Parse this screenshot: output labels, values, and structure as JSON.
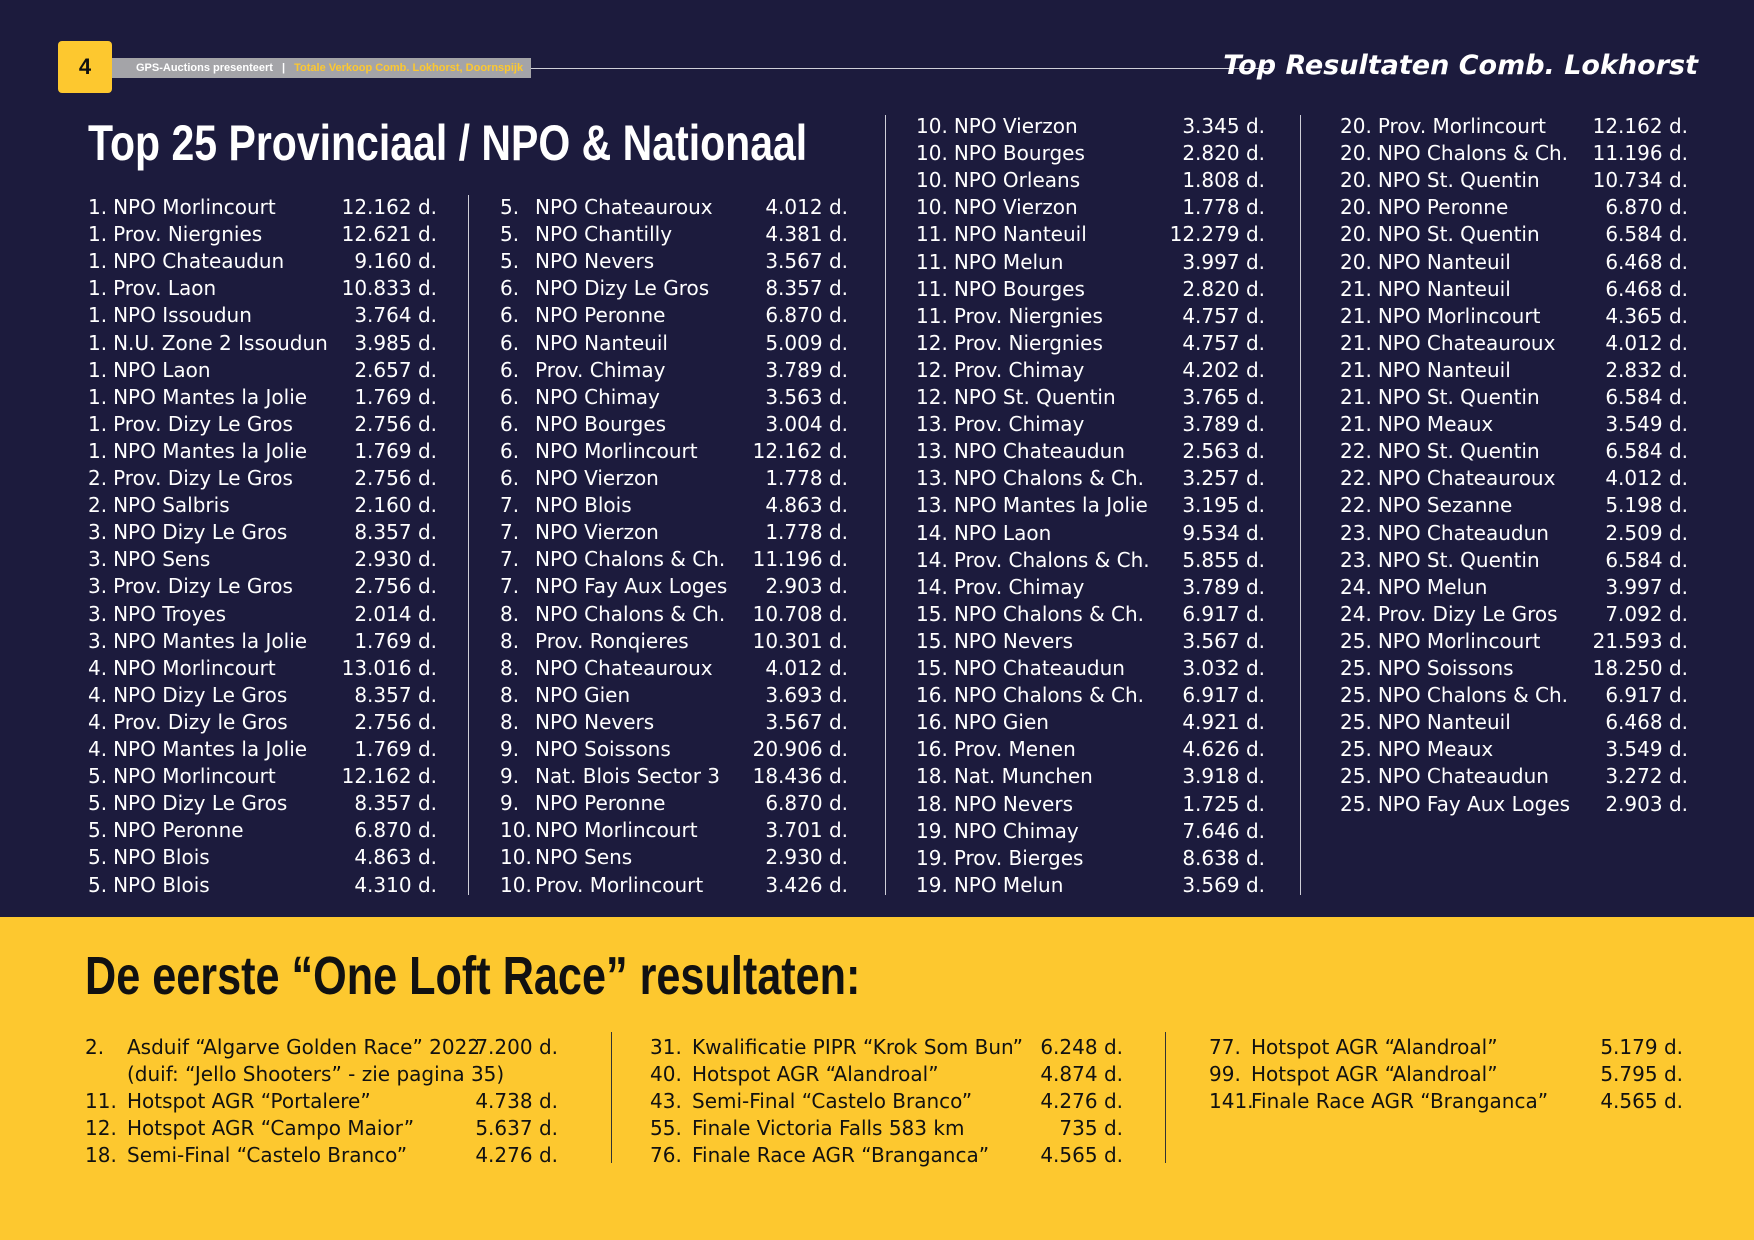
{
  "header": {
    "page_number": "4",
    "presenter": "GPS-Auctions presenteert",
    "separator": "|",
    "subtitle": "Totale Verkoop Comb. Lokhorst, Doornspijk",
    "section": "Top Resultaten Comb. Lokhorst"
  },
  "top": {
    "title": "Top 25 Provinciaal / NPO & Nationaal",
    "columns": [
      [
        [
          "1.",
          "NPO Morlincourt",
          "12.162 d."
        ],
        [
          "1.",
          "Prov. Niergnies",
          "12.621 d."
        ],
        [
          "1.",
          "NPO Chateaudun",
          "9.160 d."
        ],
        [
          "1.",
          "Prov. Laon",
          "10.833 d."
        ],
        [
          "1.",
          "NPO Issoudun",
          "3.764 d."
        ],
        [
          "1.",
          "N.U. Zone 2 Issoudun",
          "3.985 d."
        ],
        [
          "1.",
          "NPO Laon",
          "2.657 d."
        ],
        [
          "1.",
          "NPO Mantes la Jolie",
          "1.769 d."
        ],
        [
          "1.",
          "Prov. Dizy Le Gros",
          "2.756 d."
        ],
        [
          "1.",
          "NPO Mantes la Jolie",
          "1.769 d."
        ],
        [
          "2.",
          "Prov. Dizy Le Gros",
          "2.756 d."
        ],
        [
          "2.",
          "NPO Salbris",
          "2.160 d."
        ],
        [
          "3.",
          "NPO Dizy Le Gros",
          "8.357 d."
        ],
        [
          "3.",
          "NPO Sens",
          "2.930 d."
        ],
        [
          "3.",
          "Prov. Dizy Le Gros",
          "2.756 d."
        ],
        [
          "3.",
          "NPO Troyes",
          "2.014 d."
        ],
        [
          "3.",
          "NPO Mantes la Jolie",
          "1.769 d."
        ],
        [
          "4.",
          "NPO Morlincourt",
          "13.016 d."
        ],
        [
          "4.",
          "NPO Dizy Le Gros",
          "8.357 d."
        ],
        [
          "4.",
          "Prov. Dizy le Gros",
          "2.756 d."
        ],
        [
          "4.",
          "NPO Mantes la Jolie",
          "1.769 d."
        ],
        [
          "5.",
          "NPO Morlincourt",
          "12.162 d."
        ],
        [
          "5.",
          "NPO Dizy Le Gros",
          "8.357 d."
        ],
        [
          "5.",
          "NPO Peronne",
          "6.870 d."
        ],
        [
          "5.",
          "NPO Blois",
          "4.863 d."
        ],
        [
          "5.",
          "NPO Blois",
          "4.310 d."
        ]
      ],
      [
        [
          "5.",
          "NPO Chateauroux",
          "4.012 d."
        ],
        [
          "5.",
          "NPO Chantilly",
          "4.381 d."
        ],
        [
          "5.",
          "NPO Nevers",
          "3.567 d."
        ],
        [
          "6.",
          "NPO Dizy Le Gros",
          "8.357 d."
        ],
        [
          "6.",
          "NPO Peronne",
          "6.870 d."
        ],
        [
          "6.",
          "NPO Nanteuil",
          "5.009 d."
        ],
        [
          "6.",
          "Prov. Chimay",
          "3.789 d."
        ],
        [
          "6.",
          "NPO Chimay",
          "3.563 d."
        ],
        [
          "6.",
          "NPO Bourges",
          "3.004 d."
        ],
        [
          "6.",
          "NPO Morlincourt",
          "12.162 d."
        ],
        [
          "6.",
          "NPO Vierzon",
          "1.778 d."
        ],
        [
          "7.",
          "NPO Blois",
          "4.863 d."
        ],
        [
          "7.",
          "NPO Vierzon",
          "1.778 d."
        ],
        [
          "7.",
          "NPO Chalons & Ch.",
          "11.196 d."
        ],
        [
          "7.",
          "NPO Fay Aux Loges",
          "2.903 d."
        ],
        [
          "8.",
          "NPO Chalons & Ch.",
          "10.708 d."
        ],
        [
          "8.",
          "Prov. Ronqieres",
          "10.301 d."
        ],
        [
          "8.",
          "NPO Chateauroux",
          "4.012 d."
        ],
        [
          "8.",
          "NPO Gien",
          "3.693 d."
        ],
        [
          "8.",
          "NPO Nevers",
          "3.567 d."
        ],
        [
          "9.",
          "NPO Soissons",
          "20.906 d."
        ],
        [
          "9.",
          "Nat. Blois Sector 3",
          "18.436 d."
        ],
        [
          "9.",
          "NPO Peronne",
          "6.870 d."
        ],
        [
          "10.",
          "NPO Morlincourt",
          "3.701 d."
        ],
        [
          "10.",
          "NPO Sens",
          "2.930 d."
        ],
        [
          "10.",
          "Prov. Morlincourt",
          "3.426 d."
        ]
      ],
      [
        [
          "10.",
          "NPO Vierzon",
          "3.345 d."
        ],
        [
          "10.",
          "NPO Bourges",
          "2.820 d."
        ],
        [
          "10.",
          "NPO Orleans",
          "1.808 d."
        ],
        [
          "10.",
          "NPO Vierzon",
          "1.778 d."
        ],
        [
          "11.",
          "NPO Nanteuil",
          "12.279 d."
        ],
        [
          "11.",
          "NPO Melun",
          "3.997 d."
        ],
        [
          "11.",
          "NPO Bourges",
          "2.820 d."
        ],
        [
          "11.",
          "Prov. Niergnies",
          "4.757 d."
        ],
        [
          "12.",
          "Prov. Niergnies",
          "4.757 d."
        ],
        [
          "12.",
          "Prov. Chimay",
          "4.202 d."
        ],
        [
          "12.",
          "NPO St. Quentin",
          "3.765 d."
        ],
        [
          "13.",
          "Prov. Chimay",
          "3.789 d."
        ],
        [
          "13.",
          "NPO Chateaudun",
          "2.563 d."
        ],
        [
          "13.",
          "NPO Chalons & Ch.",
          "3.257 d."
        ],
        [
          "13.",
          "NPO Mantes la Jolie",
          "3.195 d."
        ],
        [
          "14.",
          "NPO Laon",
          "9.534 d."
        ],
        [
          "14.",
          "Prov. Chalons & Ch.",
          "5.855 d."
        ],
        [
          "14.",
          "Prov. Chimay",
          "3.789 d."
        ],
        [
          "15.",
          "NPO Chalons & Ch.",
          "6.917 d."
        ],
        [
          "15.",
          "NPO Nevers",
          "3.567 d."
        ],
        [
          "15.",
          "NPO Chateaudun",
          "3.032 d."
        ],
        [
          "16.",
          "NPO Chalons & Ch.",
          "6.917 d."
        ],
        [
          "16.",
          "NPO Gien",
          "4.921 d."
        ],
        [
          "16.",
          "Prov. Menen",
          "4.626 d."
        ],
        [
          "18.",
          "Nat. Munchen",
          "3.918 d."
        ],
        [
          "18.",
          "NPO Nevers",
          "1.725 d."
        ],
        [
          "19.",
          "NPO Chimay",
          "7.646 d."
        ],
        [
          "19.",
          "Prov. Bierges",
          "8.638 d."
        ],
        [
          "19.",
          "NPO Melun",
          "3.569 d."
        ]
      ],
      [
        [
          "20.",
          "Prov. Morlincourt",
          "12.162 d."
        ],
        [
          "20.",
          "NPO Chalons & Ch.",
          "11.196 d."
        ],
        [
          "20.",
          "NPO St. Quentin",
          "10.734 d."
        ],
        [
          "20.",
          "NPO Peronne",
          "6.870 d."
        ],
        [
          "20.",
          "NPO St. Quentin",
          "6.584 d."
        ],
        [
          "20.",
          "NPO Nanteuil",
          "6.468 d."
        ],
        [
          "21.",
          "NPO Nanteuil",
          "6.468 d."
        ],
        [
          "21.",
          "NPO Morlincourt",
          "4.365 d."
        ],
        [
          "21.",
          "NPO Chateauroux",
          "4.012 d."
        ],
        [
          "21.",
          "NPO Nanteuil",
          "2.832 d."
        ],
        [
          "21.",
          "NPO St. Quentin",
          "6.584 d."
        ],
        [
          "21.",
          "NPO Meaux",
          "3.549 d."
        ],
        [
          "22.",
          "NPO St. Quentin",
          "6.584 d."
        ],
        [
          "22.",
          "NPO Chateauroux",
          "4.012 d."
        ],
        [
          "22.",
          "NPO Sezanne",
          "5.198 d."
        ],
        [
          "23.",
          "NPO Chateaudun",
          "2.509 d."
        ],
        [
          "23.",
          "NPO St. Quentin",
          "6.584 d."
        ],
        [
          "24.",
          "NPO Melun",
          "3.997 d."
        ],
        [
          "24.",
          "Prov. Dizy Le Gros",
          "7.092 d."
        ],
        [
          "25.",
          "NPO Morlincourt",
          "21.593 d."
        ],
        [
          "25.",
          "NPO Soissons",
          "18.250 d."
        ],
        [
          "25.",
          "NPO Chalons & Ch.",
          "6.917 d."
        ],
        [
          "25.",
          "NPO Nanteuil",
          "6.468 d."
        ],
        [
          "25.",
          "NPO Meaux",
          "3.549 d."
        ],
        [
          "25.",
          "NPO Chateaudun",
          "3.272 d."
        ],
        [
          "25.",
          "NPO Fay Aux Loges",
          "2.903 d."
        ]
      ]
    ]
  },
  "bottom": {
    "title": "De eerste “One Loft Race” resultaten:",
    "columns": [
      [
        [
          "2.",
          "Asduif “Algarve Golden Race” 2022",
          "7.200 d.",
          "(duif: “Jello Shooters” - zie pagina 35)"
        ],
        [
          "11.",
          "Hotspot AGR “Portalere”",
          "4.738 d."
        ],
        [
          "12.",
          "Hotspot AGR “Campo Maior”",
          "5.637 d."
        ],
        [
          "18.",
          "Semi-Final “Castelo Branco”",
          "4.276 d."
        ]
      ],
      [
        [
          "31.",
          "Kwalificatie PIPR “Krok Som Bun”",
          "6.248 d."
        ],
        [
          "40.",
          "Hotspot AGR “Alandroal”",
          "4.874 d."
        ],
        [
          "43.",
          "Semi-Final “Castelo Branco”",
          "4.276 d."
        ],
        [
          "55.",
          "Finale Victoria Falls 583 km",
          "735 d."
        ],
        [
          "76.",
          "Finale Race AGR “Branganca”",
          "4.565 d."
        ]
      ],
      [
        [
          "77.",
          "Hotspot AGR “Alandroal”",
          "5.179 d."
        ],
        [
          "99.",
          "Hotspot AGR “Alandroal”",
          "5.795 d."
        ],
        [
          "141.",
          "Finale Race AGR “Branganca”",
          "4.565 d."
        ]
      ]
    ]
  }
}
